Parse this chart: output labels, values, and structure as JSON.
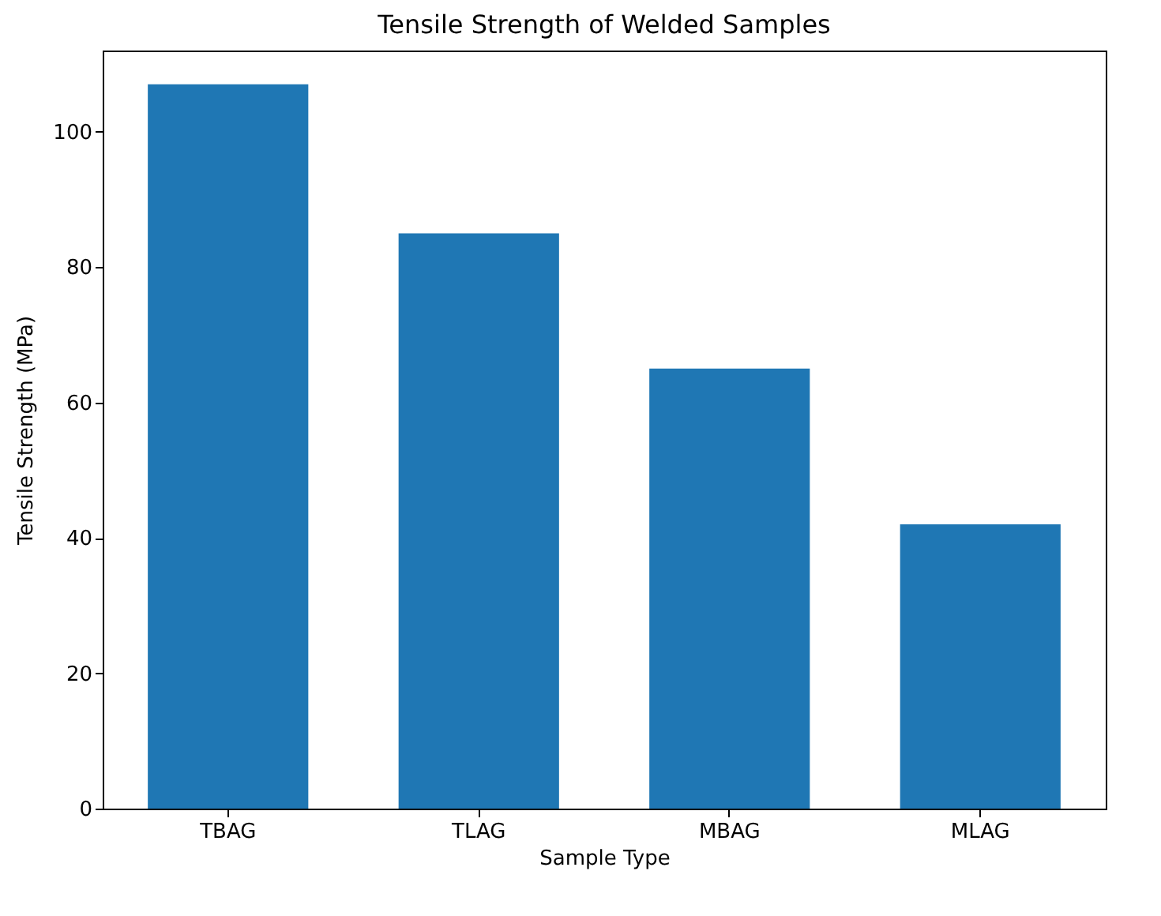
{
  "chart_data": {
    "type": "bar",
    "title": "Tensile Strength of Welded Samples",
    "xlabel": "Sample Type",
    "ylabel": "Tensile Strength (MPa)",
    "categories": [
      "TBAG",
      "TLAG",
      "MBAG",
      "MLAG"
    ],
    "values": [
      107,
      85,
      65,
      42
    ],
    "color": "#1f77b4",
    "ylim": [
      0,
      112
    ],
    "yticks": [
      0,
      20,
      40,
      60,
      80,
      100
    ],
    "grid": false
  }
}
